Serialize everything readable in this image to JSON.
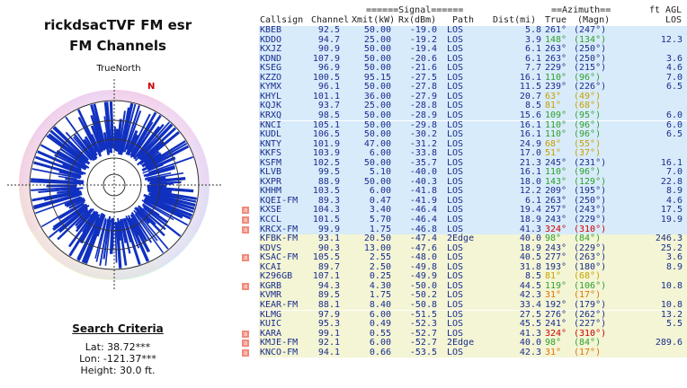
{
  "left": {
    "title_line1": "rickdsacTVF FM esr",
    "title_line2": "FM Channels",
    "compass_label": "TrueNorth",
    "north_label": "N",
    "search_title": "Search Criteria",
    "lat": "Lat: 38.72***",
    "lon": "Lon: -121.37***",
    "height": "Height: 30.0 ft."
  },
  "header": {
    "signal_banner": "======Signal======",
    "azimuth_banner": "==Azimuth==",
    "ft_agl": "ft AGL",
    "columns": [
      "Callsign",
      "Channel",
      "Xmit(kW)",
      "Rx(dBm)",
      "Path",
      "Dist(mi)",
      "True",
      "(Magn)",
      "LOS"
    ]
  },
  "badge_label": "a",
  "colors": {
    "green_row": "#f3f5d5",
    "blue_row": "#d8ebfa",
    "green_az": "#2e9e2e",
    "blue_az": "#1a2c8c",
    "yellow_az": "#c8a000",
    "orange_az": "#e07000",
    "red_az": "#cc0000",
    "bar_color": "#1030c0"
  },
  "rows": [
    {
      "callsign": "KBEB",
      "channel": "92.5",
      "xmit": "50.00",
      "rx": "-19.0",
      "path": "LOS",
      "dist": "5.8",
      "az_true": "261°",
      "az_magn": "(247°)",
      "los": "",
      "az_color": "blue",
      "band": "b",
      "badge": false
    },
    {
      "callsign": "KDDO",
      "channel": "94.7",
      "xmit": "25.00",
      "rx": "-19.2",
      "path": "LOS",
      "dist": "3.9",
      "az_true": "148°",
      "az_magn": "(134°)",
      "los": "12.3",
      "az_color": "green",
      "band": "b",
      "badge": false
    },
    {
      "callsign": "KXJZ",
      "channel": "90.9",
      "xmit": "50.00",
      "rx": "-19.4",
      "path": "LOS",
      "dist": "6.1",
      "az_true": "263°",
      "az_magn": "(250°)",
      "los": "",
      "az_color": "blue",
      "band": "b",
      "badge": false
    },
    {
      "callsign": "KDND",
      "channel": "107.9",
      "xmit": "50.00",
      "rx": "-20.6",
      "path": "LOS",
      "dist": "6.1",
      "az_true": "263°",
      "az_magn": "(250°)",
      "los": "3.6",
      "az_color": "blue",
      "band": "b",
      "badge": false
    },
    {
      "callsign": "KSEG",
      "channel": "96.9",
      "xmit": "50.00",
      "rx": "-21.6",
      "path": "LOS",
      "dist": "7.7",
      "az_true": "229°",
      "az_magn": "(215°)",
      "los": "4.6",
      "az_color": "blue",
      "band": "b",
      "badge": false
    },
    {
      "callsign": "KZZO",
      "channel": "100.5",
      "xmit": "95.15",
      "rx": "-27.5",
      "path": "LOS",
      "dist": "16.1",
      "az_true": "110°",
      "az_magn": "(96°)",
      "los": "7.0",
      "az_color": "green",
      "band": "b",
      "badge": false
    },
    {
      "callsign": "KYMX",
      "channel": "96.1",
      "xmit": "50.00",
      "rx": "-27.8",
      "path": "LOS",
      "dist": "11.5",
      "az_true": "239°",
      "az_magn": "(226°)",
      "los": "6.5",
      "az_color": "blue",
      "band": "b",
      "badge": false
    },
    {
      "callsign": "KHYL",
      "channel": "101.1",
      "xmit": "36.00",
      "rx": "-27.9",
      "path": "LOS",
      "dist": "20.7",
      "az_true": "63°",
      "az_magn": "(49°)",
      "los": "",
      "az_color": "yellow",
      "band": "b",
      "badge": false
    },
    {
      "callsign": "KQJK",
      "channel": "93.7",
      "xmit": "25.00",
      "rx": "-28.8",
      "path": "LOS",
      "dist": "8.5",
      "az_true": "81°",
      "az_magn": "(68°)",
      "los": "",
      "az_color": "yellow",
      "band": "b",
      "badge": false
    },
    {
      "callsign": "KRXQ",
      "channel": "98.5",
      "xmit": "50.00",
      "rx": "-28.9",
      "path": "LOS",
      "dist": "15.6",
      "az_true": "109°",
      "az_magn": "(95°)",
      "los": "6.0",
      "az_color": "green",
      "band": "b",
      "badge": false
    },
    {
      "callsign": "KNCI",
      "channel": "105.1",
      "xmit": "50.00",
      "rx": "-29.8",
      "path": "LOS",
      "dist": "16.1",
      "az_true": "110°",
      "az_magn": "(96°)",
      "los": "6.0",
      "az_color": "green",
      "band": "b",
      "badge": false
    },
    {
      "callsign": "KUDL",
      "channel": "106.5",
      "xmit": "50.00",
      "rx": "-30.2",
      "path": "LOS",
      "dist": "16.1",
      "az_true": "110°",
      "az_magn": "(96°)",
      "los": "6.5",
      "az_color": "green",
      "band": "b",
      "badge": false
    },
    {
      "callsign": "KNTY",
      "channel": "101.9",
      "xmit": "47.00",
      "rx": "-31.2",
      "path": "LOS",
      "dist": "24.9",
      "az_true": "68°",
      "az_magn": "(55°)",
      "los": "",
      "az_color": "yellow",
      "band": "b",
      "badge": false
    },
    {
      "callsign": "KKFS",
      "channel": "103.9",
      "xmit": "6.00",
      "rx": "-33.8",
      "path": "LOS",
      "dist": "17.0",
      "az_true": "51°",
      "az_magn": "(37°)",
      "los": "",
      "az_color": "yellow",
      "band": "b",
      "badge": false
    },
    {
      "callsign": "KSFM",
      "channel": "102.5",
      "xmit": "50.00",
      "rx": "-35.7",
      "path": "LOS",
      "dist": "21.3",
      "az_true": "245°",
      "az_magn": "(231°)",
      "los": "16.1",
      "az_color": "blue",
      "band": "b",
      "badge": false
    },
    {
      "callsign": "KLVB",
      "channel": "99.5",
      "xmit": "5.10",
      "rx": "-40.0",
      "path": "LOS",
      "dist": "16.1",
      "az_true": "110°",
      "az_magn": "(96°)",
      "los": "7.0",
      "az_color": "green",
      "band": "b",
      "badge": false
    },
    {
      "callsign": "KXPR",
      "channel": "88.9",
      "xmit": "50.00",
      "rx": "-40.3",
      "path": "LOS",
      "dist": "18.0",
      "az_true": "143°",
      "az_magn": "(129°)",
      "los": "22.8",
      "az_color": "green",
      "band": "b",
      "badge": false
    },
    {
      "callsign": "KHHM",
      "channel": "103.5",
      "xmit": "6.00",
      "rx": "-41.8",
      "path": "LOS",
      "dist": "12.2",
      "az_true": "209°",
      "az_magn": "(195°)",
      "los": "8.9",
      "az_color": "blue",
      "band": "b",
      "badge": false
    },
    {
      "callsign": "KQEI-FM",
      "channel": "89.3",
      "xmit": "0.47",
      "rx": "-41.9",
      "path": "LOS",
      "dist": "6.1",
      "az_true": "263°",
      "az_magn": "(250°)",
      "los": "4.6",
      "az_color": "blue",
      "band": "b",
      "badge": false
    },
    {
      "callsign": "KXSE",
      "channel": "104.3",
      "xmit": "3.40",
      "rx": "-46.4",
      "path": "LOS",
      "dist": "19.4",
      "az_true": "257°",
      "az_magn": "(243°)",
      "los": "17.5",
      "az_color": "blue",
      "band": "b",
      "badge": true
    },
    {
      "callsign": "KCCL",
      "channel": "101.5",
      "xmit": "5.70",
      "rx": "-46.4",
      "path": "LOS",
      "dist": "18.9",
      "az_true": "243°",
      "az_magn": "(229°)",
      "los": "19.9",
      "az_color": "blue",
      "band": "b",
      "badge": true
    },
    {
      "callsign": "KRCX-FM",
      "channel": "99.9",
      "xmit": "1.75",
      "rx": "-46.8",
      "path": "LOS",
      "dist": "41.3",
      "az_true": "324°",
      "az_magn": "(310°)",
      "los": "",
      "az_color": "red",
      "band": "b",
      "badge": true
    },
    {
      "callsign": "KFBK-FM",
      "channel": "93.1",
      "xmit": "20.50",
      "rx": "-47.4",
      "path": "2Edge",
      "dist": "40.0",
      "az_true": "98°",
      "az_magn": "(84°)",
      "los": "246.3",
      "az_color": "green",
      "band": "g",
      "badge": false
    },
    {
      "callsign": "KDVS",
      "channel": "90.3",
      "xmit": "13.00",
      "rx": "-47.6",
      "path": "LOS",
      "dist": "18.9",
      "az_true": "243°",
      "az_magn": "(229°)",
      "los": "25.2",
      "az_color": "blue",
      "band": "g",
      "badge": false
    },
    {
      "callsign": "KSAC-FM",
      "channel": "105.5",
      "xmit": "2.55",
      "rx": "-48.0",
      "path": "LOS",
      "dist": "40.5",
      "az_true": "277°",
      "az_magn": "(263°)",
      "los": "3.6",
      "az_color": "blue",
      "band": "g",
      "badge": true
    },
    {
      "callsign": "KCAI",
      "channel": "89.7",
      "xmit": "2.50",
      "rx": "-49.8",
      "path": "LOS",
      "dist": "31.8",
      "az_true": "193°",
      "az_magn": "(180°)",
      "los": "8.9",
      "az_color": "blue",
      "band": "g",
      "badge": false
    },
    {
      "callsign": "K296GB",
      "channel": "107.1",
      "xmit": "0.25",
      "rx": "-49.9",
      "path": "LOS",
      "dist": "8.5",
      "az_true": "81°",
      "az_magn": "(68°)",
      "los": "",
      "az_color": "yellow",
      "band": "g",
      "badge": false
    },
    {
      "callsign": "KGRB",
      "channel": "94.3",
      "xmit": "4.30",
      "rx": "-50.0",
      "path": "LOS",
      "dist": "44.5",
      "az_true": "119°",
      "az_magn": "(106°)",
      "los": "10.8",
      "az_color": "green",
      "band": "g",
      "badge": true
    },
    {
      "callsign": "KVMR",
      "channel": "89.5",
      "xmit": "1.75",
      "rx": "-50.2",
      "path": "LOS",
      "dist": "42.3",
      "az_true": "31°",
      "az_magn": "(17°)",
      "los": "",
      "az_color": "orange",
      "band": "g",
      "badge": false
    },
    {
      "callsign": "KEAR-FM",
      "channel": "88.1",
      "xmit": "8.40",
      "rx": "-50.8",
      "path": "LOS",
      "dist": "33.4",
      "az_true": "192°",
      "az_magn": "(179°)",
      "los": "10.8",
      "az_color": "blue",
      "band": "g",
      "badge": false
    },
    {
      "callsign": "KLMG",
      "channel": "97.9",
      "xmit": "6.00",
      "rx": "-51.5",
      "path": "LOS",
      "dist": "27.5",
      "az_true": "276°",
      "az_magn": "(262°)",
      "los": "13.2",
      "az_color": "blue",
      "band": "g",
      "badge": false
    },
    {
      "callsign": "KUIC",
      "channel": "95.3",
      "xmit": "0.49",
      "rx": "-52.3",
      "path": "LOS",
      "dist": "45.5",
      "az_true": "241°",
      "az_magn": "(227°)",
      "los": "5.5",
      "az_color": "blue",
      "band": "g",
      "badge": false
    },
    {
      "callsign": "KARA",
      "channel": "99.1",
      "xmit": "0.55",
      "rx": "-52.7",
      "path": "LOS",
      "dist": "41.3",
      "az_true": "324°",
      "az_magn": "(310°)",
      "los": "",
      "az_color": "red",
      "band": "g",
      "badge": true
    },
    {
      "callsign": "KMJE-FM",
      "channel": "92.1",
      "xmit": "6.00",
      "rx": "-52.7",
      "path": "2Edge",
      "dist": "40.0",
      "az_true": "98°",
      "az_magn": "(84°)",
      "los": "289.6",
      "az_color": "green",
      "band": "g",
      "badge": true
    },
    {
      "callsign": "KNCO-FM",
      "channel": "94.1",
      "xmit": "0.66",
      "rx": "-53.5",
      "path": "LOS",
      "dist": "42.3",
      "az_true": "31°",
      "az_magn": "(17°)",
      "los": "",
      "az_color": "orange",
      "band": "g",
      "badge": true
    }
  ]
}
